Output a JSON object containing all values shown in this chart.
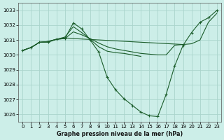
{
  "background_color": "#cceee8",
  "grid_color": "#aad4cc",
  "line_color": "#1a5c2a",
  "title": "Graphe pression niveau de la mer (hPa)",
  "ylim": [
    1025.5,
    1033.5
  ],
  "xlim": [
    -0.5,
    23.5
  ],
  "yticks": [
    1026,
    1027,
    1028,
    1029,
    1030,
    1031,
    1032,
    1033
  ],
  "xticks": [
    0,
    1,
    2,
    3,
    4,
    5,
    6,
    7,
    8,
    9,
    10,
    11,
    12,
    13,
    14,
    15,
    16,
    17,
    18,
    19,
    20,
    21,
    22,
    23
  ],
  "series0": [
    1030.3,
    1030.5,
    1030.85,
    1030.85,
    1031.05,
    1031.1,
    1032.15,
    1031.75,
    1031.0,
    1030.2,
    1028.5,
    1027.65,
    1027.05,
    1026.6,
    1026.15,
    1025.9,
    1025.85,
    1027.35,
    1029.25,
    1030.65,
    1031.5,
    1032.2,
    1032.5,
    1033.0
  ],
  "series1_x": [
    0,
    1,
    2,
    3,
    4,
    5,
    6,
    7,
    8,
    9,
    10,
    11,
    12,
    13,
    14,
    15,
    16,
    17,
    18,
    19
  ],
  "series1_y": [
    1030.3,
    1030.5,
    1030.85,
    1030.9,
    1031.05,
    1031.1,
    1031.55,
    1031.35,
    1031.1,
    1030.8,
    1030.55,
    1030.4,
    1030.3,
    1030.2,
    1030.1,
    1030.05,
    1030.0,
    1030.0,
    1030.65,
    1030.7
  ],
  "series2_x": [
    0,
    1,
    2,
    3,
    4,
    5,
    6,
    7,
    8,
    9,
    10,
    11,
    12,
    13,
    14
  ],
  "series2_y": [
    1030.3,
    1030.5,
    1030.85,
    1030.9,
    1031.05,
    1031.2,
    1031.9,
    1031.5,
    1031.05,
    1030.55,
    1030.25,
    1030.15,
    1030.1,
    1030.0,
    1029.9
  ],
  "series3_x": [
    0,
    1,
    2,
    3,
    4,
    5,
    6,
    19,
    20,
    21,
    22,
    23
  ],
  "series3_y": [
    1030.3,
    1030.5,
    1030.85,
    1030.9,
    1031.05,
    1031.15,
    1031.1,
    1030.7,
    1030.75,
    1031.0,
    1032.2,
    1032.8
  ]
}
